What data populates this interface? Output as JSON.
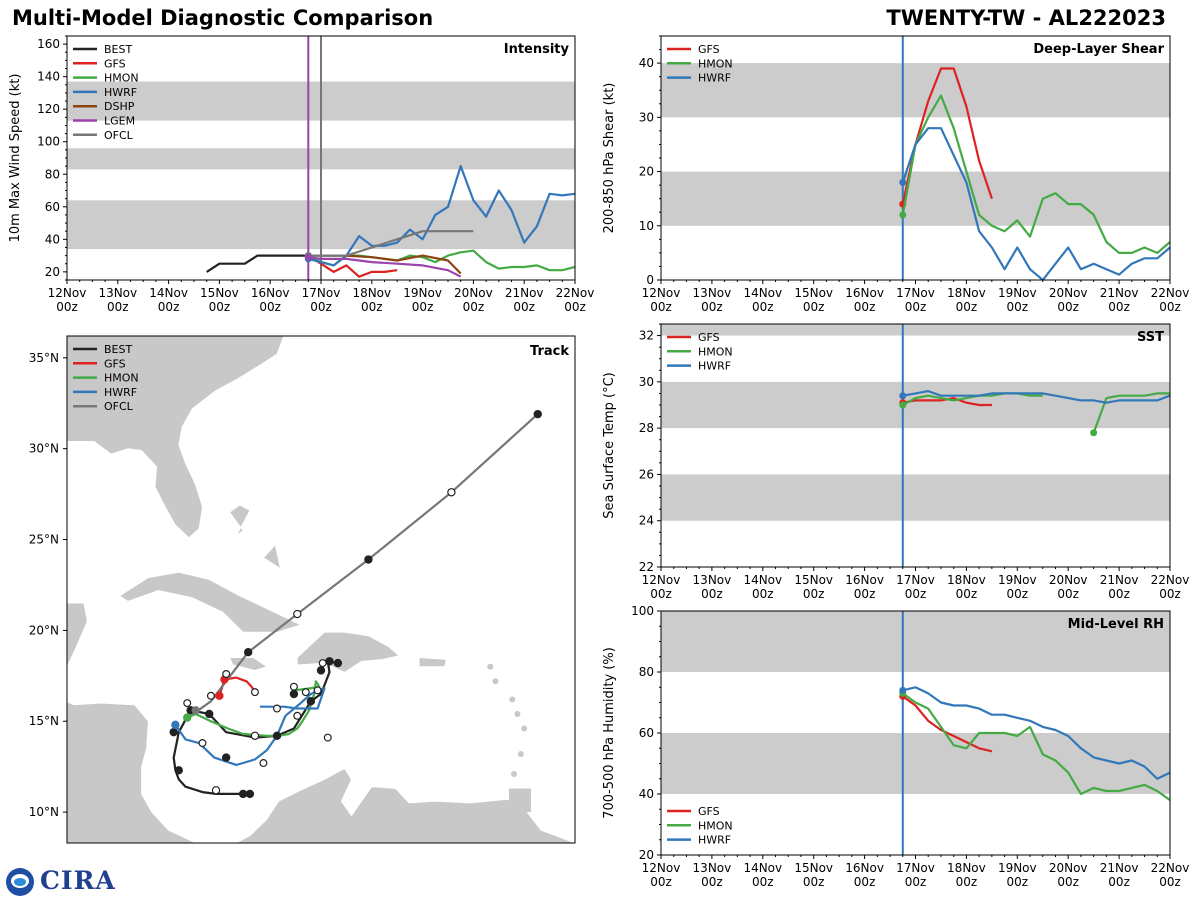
{
  "header": {
    "title_left": "Multi-Model Diagnostic Comparison",
    "title_right": "TWENTY-TW - AL222023"
  },
  "logo": {
    "text": "CIRA"
  },
  "colors": {
    "BEST": "#222222",
    "GFS": "#dd2222",
    "HMON": "#44aa44",
    "HWRF": "#3377bb",
    "DSHP": "#8b4513",
    "LGEM": "#9944aa",
    "OFCL": "#777777",
    "band": "#cccccc",
    "land": "#c8c8c8"
  },
  "time_axis": {
    "labels_top": [
      "12Nov",
      "13Nov",
      "14Nov",
      "15Nov",
      "16Nov",
      "17Nov",
      "18Nov",
      "19Nov",
      "20Nov",
      "21Nov",
      "22Nov"
    ],
    "labels_bottom": [
      "00z",
      "00z",
      "00z",
      "00z",
      "00z",
      "00z",
      "00z",
      "00z",
      "00z",
      "00z",
      "00z"
    ],
    "range": [
      0,
      10
    ]
  },
  "chart_data": [
    {
      "id": "intensity",
      "type": "line",
      "title": "Intensity",
      "ylabel": "10m Max Wind Speed (kt)",
      "ylim": [
        15,
        165
      ],
      "yticks": [
        20,
        40,
        60,
        80,
        100,
        120,
        140,
        160
      ],
      "bands": [
        [
          34,
          64
        ],
        [
          83,
          96
        ],
        [
          113,
          137
        ]
      ],
      "vlines": [
        {
          "x": 4.75,
          "color": "#9944aa"
        },
        {
          "x": 5.0,
          "color": "#777777"
        }
      ],
      "legend": [
        "BEST",
        "GFS",
        "HMON",
        "HWRF",
        "DSHP",
        "LGEM",
        "OFCL"
      ],
      "series": [
        {
          "name": "BEST",
          "x": [
            2.75,
            3.0,
            3.25,
            3.5,
            3.75,
            4.0,
            4.25,
            4.5,
            4.75
          ],
          "y": [
            20,
            25,
            25,
            25,
            30,
            30,
            30,
            30,
            30
          ]
        },
        {
          "name": "GFS",
          "x": [
            4.75,
            5.0,
            5.25,
            5.5,
            5.75,
            6.0,
            6.25,
            6.5
          ],
          "y": [
            30,
            25,
            20,
            24,
            17,
            20,
            20,
            21
          ]
        },
        {
          "name": "HMON",
          "x": [
            4.75,
            5.0,
            5.25,
            5.5,
            5.75,
            6.0,
            6.25,
            6.5,
            6.75,
            7.0,
            7.25,
            7.5,
            7.75,
            8.0,
            8.25,
            8.5,
            8.75,
            9.0,
            9.25,
            9.5,
            9.75,
            10.0
          ],
          "y": [
            30,
            26,
            24,
            30,
            30,
            29,
            28,
            27,
            30,
            29,
            26,
            30,
            32,
            33,
            26,
            22,
            23,
            23,
            24,
            21,
            21,
            23
          ]
        },
        {
          "name": "HWRF",
          "x": [
            4.75,
            5.0,
            5.25,
            5.5,
            5.75,
            6.0,
            6.25,
            6.5,
            6.75,
            7.0,
            7.25,
            7.5,
            7.75,
            8.0,
            8.25,
            8.5,
            8.75,
            9.0,
            9.25,
            9.5,
            9.75,
            10.0
          ],
          "y": [
            28,
            26,
            24,
            30,
            42,
            36,
            36,
            38,
            46,
            40,
            55,
            60,
            85,
            64,
            54,
            70,
            58,
            38,
            48,
            68,
            67,
            68
          ]
        },
        {
          "name": "DSHP",
          "x": [
            4.75,
            5.0,
            5.5,
            6.0,
            6.5,
            7.0,
            7.5,
            7.75
          ],
          "y": [
            30,
            30,
            30,
            29,
            27,
            30,
            27,
            19
          ]
        },
        {
          "name": "LGEM",
          "x": [
            4.75,
            5.0,
            5.5,
            6.0,
            6.5,
            7.0,
            7.5,
            7.75
          ],
          "y": [
            29,
            28,
            28,
            26,
            25,
            24,
            21,
            17
          ]
        },
        {
          "name": "OFCL",
          "x": [
            4.75,
            5.0,
            5.5,
            6.0,
            6.5,
            7.0,
            7.5,
            8.0
          ],
          "y": [
            30,
            30,
            30,
            35,
            40,
            45,
            45,
            45
          ]
        }
      ]
    },
    {
      "id": "shear",
      "type": "line",
      "title": "Deep-Layer Shear",
      "ylabel": "200-850 hPa Shear (kt)",
      "ylim": [
        0,
        45
      ],
      "yticks": [
        0,
        10,
        20,
        30,
        40
      ],
      "bands": [
        [
          10,
          20
        ],
        [
          30,
          40
        ]
      ],
      "vlines": [
        {
          "x": 4.75,
          "color": "#3377bb"
        }
      ],
      "legend": [
        "GFS",
        "HMON",
        "HWRF"
      ],
      "series": [
        {
          "name": "GFS",
          "x": [
            4.75,
            5.0,
            5.25,
            5.5,
            5.75,
            6.0,
            6.25,
            6.5
          ],
          "y": [
            14,
            25,
            33,
            39,
            39,
            32,
            22,
            15
          ]
        },
        {
          "name": "HMON",
          "x": [
            4.75,
            5.0,
            5.25,
            5.5,
            5.75,
            6.0,
            6.25,
            6.5,
            6.75,
            7.0,
            7.25,
            7.5,
            7.75,
            8.0,
            8.25,
            8.5,
            8.75,
            9.0,
            9.25,
            9.5,
            9.75,
            10.0
          ],
          "y": [
            12,
            25,
            30,
            34,
            28,
            20,
            12,
            10,
            9,
            11,
            8,
            15,
            16,
            14,
            14,
            12,
            7,
            5,
            5,
            6,
            5,
            7
          ]
        },
        {
          "name": "HWRF",
          "x": [
            4.75,
            5.0,
            5.25,
            5.5,
            5.75,
            6.0,
            6.25,
            6.5,
            6.75,
            7.0,
            7.25,
            7.5,
            7.75,
            8.0,
            8.25,
            8.5,
            8.75,
            9.0,
            9.25,
            9.5,
            9.75,
            10.0
          ],
          "y": [
            18,
            25,
            28,
            28,
            23,
            18,
            9,
            6,
            2,
            6,
            2,
            0,
            3,
            6,
            2,
            3,
            2,
            1,
            3,
            4,
            4,
            6
          ]
        }
      ]
    },
    {
      "id": "sst",
      "type": "line",
      "title": "SST",
      "ylabel": "Sea Surface Temp (°C)",
      "ylim": [
        22,
        32.5
      ],
      "yticks": [
        22,
        24,
        26,
        28,
        30,
        32
      ],
      "bands": [
        [
          24,
          26
        ],
        [
          28,
          30
        ],
        [
          32,
          34
        ]
      ],
      "vlines": [
        {
          "x": 4.75,
          "color": "#3377bb"
        }
      ],
      "legend": [
        "GFS",
        "HMON",
        "HWRF"
      ],
      "series": [
        {
          "name": "GFS",
          "x": [
            4.75,
            5.0,
            5.25,
            5.5,
            5.75,
            6.0,
            6.25,
            6.5
          ],
          "y": [
            29.1,
            29.2,
            29.2,
            29.2,
            29.3,
            29.1,
            29.0,
            29.0
          ]
        },
        {
          "name": "HMON",
          "x": [
            4.75,
            5.0,
            5.25,
            5.5,
            5.75,
            6.0,
            6.25,
            6.5,
            6.75,
            7.0,
            7.25,
            7.5
          ],
          "y": [
            29.0,
            29.3,
            29.4,
            29.3,
            29.2,
            29.3,
            29.4,
            29.4,
            29.5,
            29.5,
            29.4,
            29.4
          ]
        },
        {
          "name": "HMON",
          "x": [
            8.5,
            8.75,
            9.0,
            9.25,
            9.5,
            9.75,
            10.0
          ],
          "y": [
            27.8,
            29.3,
            29.4,
            29.4,
            29.4,
            29.5,
            29.5
          ]
        },
        {
          "name": "HWRF",
          "x": [
            4.75,
            5.0,
            5.25,
            5.5,
            5.75,
            6.0,
            6.25,
            6.5,
            6.75,
            7.0,
            7.25,
            7.5,
            7.75,
            8.0,
            8.25,
            8.5,
            8.75,
            9.0,
            9.25,
            9.5,
            9.75,
            10.0
          ],
          "y": [
            29.4,
            29.5,
            29.6,
            29.4,
            29.4,
            29.4,
            29.4,
            29.5,
            29.5,
            29.5,
            29.5,
            29.5,
            29.4,
            29.3,
            29.2,
            29.2,
            29.1,
            29.2,
            29.2,
            29.2,
            29.2,
            29.4
          ]
        }
      ]
    },
    {
      "id": "rh",
      "type": "line",
      "title": "Mid-Level RH",
      "ylabel": "700-500 hPa Humidity (%)",
      "ylim": [
        20,
        100
      ],
      "yticks": [
        20,
        40,
        60,
        80,
        100
      ],
      "bands": [
        [
          40,
          60
        ],
        [
          80,
          100
        ]
      ],
      "vlines": [
        {
          "x": 4.75,
          "color": "#3377bb"
        }
      ],
      "legend": [
        "GFS",
        "HMON",
        "HWRF"
      ],
      "legend_pos": "bottom-left",
      "series": [
        {
          "name": "GFS",
          "x": [
            4.75,
            5.0,
            5.25,
            5.5,
            5.75,
            6.0,
            6.25,
            6.5
          ],
          "y": [
            72,
            69,
            64,
            61,
            59,
            57,
            55,
            54
          ]
        },
        {
          "name": "HMON",
          "x": [
            4.75,
            5.0,
            5.25,
            5.5,
            5.75,
            6.0,
            6.25,
            6.5,
            6.75,
            7.0,
            7.25,
            7.5,
            7.75,
            8.0,
            8.25,
            8.5,
            8.75,
            9.0,
            9.25,
            9.5,
            9.75,
            10.0
          ],
          "y": [
            73,
            70,
            68,
            62,
            56,
            55,
            60,
            60,
            60,
            59,
            62,
            53,
            51,
            47,
            40,
            42,
            41,
            41,
            42,
            43,
            41,
            38
          ]
        },
        {
          "name": "HWRF",
          "x": [
            4.75,
            5.0,
            5.25,
            5.5,
            5.75,
            6.0,
            6.25,
            6.5,
            6.75,
            7.0,
            7.25,
            7.5,
            7.75,
            8.0,
            8.25,
            8.5,
            8.75,
            9.0,
            9.25,
            9.5,
            9.75,
            10.0
          ],
          "y": [
            74,
            75,
            73,
            70,
            69,
            69,
            68,
            66,
            66,
            65,
            64,
            62,
            61,
            59,
            55,
            52,
            51,
            50,
            51,
            49,
            45,
            47
          ]
        }
      ]
    },
    {
      "id": "track",
      "type": "scatter",
      "title": "Track",
      "lon_range": [
        -88,
        -58
      ],
      "lat_range": [
        8.3,
        36.2
      ],
      "yticks": [
        10,
        15,
        20,
        25,
        30,
        35
      ],
      "ytick_labels": [
        "10°N",
        "15°N",
        "20°N",
        "25°N",
        "30°N",
        "35°N"
      ],
      "legend": [
        "BEST",
        "GFS",
        "HMON",
        "HWRF",
        "OFCL"
      ],
      "series": [
        {
          "name": "BEST",
          "lon": [
            -77.2,
            -77.6,
            -78.6,
            -79.2,
            -80.0,
            -81.0,
            -81.4,
            -81.6,
            -81.7,
            -81.4,
            -80.7,
            -79.6,
            -78.6,
            -76.9,
            -75.6,
            -74.6,
            -73.6,
            -73.0,
            -72.5,
            -72.6,
            -72.0
          ],
          "lat": [
            11.0,
            11.0,
            11.0,
            11.0,
            11.1,
            11.4,
            11.8,
            12.3,
            13.0,
            14.4,
            15.6,
            15.4,
            14.4,
            14.1,
            14.2,
            14.6,
            16.1,
            16.5,
            17.7,
            18.3,
            18.2
          ]
        },
        {
          "name": "GFS",
          "lon": [
            -79.0,
            -78.7,
            -78.0,
            -77.4,
            -77.1,
            -76.9
          ],
          "lat": [
            16.4,
            17.3,
            17.4,
            17.2,
            16.9,
            16.6
          ]
        },
        {
          "name": "HMON",
          "lon": [
            -80.9,
            -80.4,
            -79.5,
            -78.5,
            -77.6,
            -76.2,
            -75.5,
            -74.9,
            -74.4,
            -74.1,
            -73.7,
            -73.4,
            -73.3,
            -73.1,
            -73.7,
            -74.6
          ],
          "lat": [
            15.2,
            15.4,
            15.0,
            14.6,
            14.3,
            14.2,
            14.2,
            14.3,
            14.6,
            15.0,
            15.6,
            16.5,
            17.2,
            16.9,
            16.8,
            16.7
          ]
        },
        {
          "name": "HWRF",
          "lon": [
            -81.6,
            -81.0,
            -80.2,
            -79.3,
            -78.0,
            -77.6,
            -76.9,
            -76.2,
            -75.6,
            -75.1,
            -74.2,
            -73.6,
            -72.9,
            -72.8,
            -73.2,
            -74.4,
            -75.2,
            -76.6
          ],
          "lat": [
            14.8,
            14.0,
            13.8,
            13.0,
            12.6,
            12.7,
            12.9,
            13.4,
            14.2,
            15.3,
            16.0,
            16.5,
            16.8,
            16.8,
            15.7,
            15.7,
            15.8,
            15.8
          ]
        },
        {
          "name": "OFCL",
          "lon": [
            -80.4,
            -79.5,
            -77.3,
            -74.4,
            -70.2,
            -65.3,
            -60.2
          ],
          "lat": [
            15.5,
            16.1,
            18.8,
            20.9,
            23.9,
            27.6,
            31.9
          ]
        }
      ],
      "markers": [
        {
          "name": "BEST",
          "lon": [
            -77.2,
            -77.6,
            -79.2,
            -81.4,
            -81.7,
            -80.7,
            -79.6,
            -78.6,
            -76.9,
            -75.6,
            -74.6,
            -73.6,
            -73.0,
            -72.5,
            -72.0
          ],
          "lat": [
            11.0,
            11.0,
            11.2,
            12.3,
            14.4,
            15.6,
            15.4,
            13.0,
            14.2,
            14.2,
            16.5,
            16.1,
            17.8,
            18.3,
            18.2
          ],
          "open": [
            false,
            false,
            true,
            false,
            false,
            false,
            false,
            false,
            true,
            false,
            false,
            false,
            false,
            false,
            false
          ]
        },
        {
          "name": "GFS",
          "lon": [
            -79.0,
            -78.7
          ],
          "lat": [
            16.4,
            17.3
          ],
          "open": [
            false,
            false
          ]
        },
        {
          "name": "HMON",
          "lon": [
            -80.9
          ],
          "lat": [
            15.2
          ],
          "open": [
            false
          ]
        },
        {
          "name": "HWRF",
          "lon": [
            -81.6
          ],
          "lat": [
            14.8
          ],
          "open": [
            false
          ]
        },
        {
          "name": "OFCL",
          "lon": [
            -80.4
          ],
          "lat": [
            15.6
          ],
          "open": [
            false
          ]
        }
      ],
      "open_circles": {
        "lon": [
          -80.9,
          -80.0,
          -78.6,
          -76.9,
          -76.4,
          -74.6,
          -73.9,
          -73.2,
          -72.9,
          -72.6,
          -74.4,
          -79.5,
          -75.6
        ],
        "lat": [
          16.0,
          13.8,
          17.6,
          16.6,
          12.7,
          16.9,
          16.6,
          16.7,
          18.2,
          14.1,
          15.3,
          16.4,
          15.7
        ]
      },
      "ofcl_points": {
        "lon": [
          -77.3,
          -74.4,
          -70.2,
          -65.3,
          -60.2
        ],
        "lat": [
          18.8,
          20.9,
          23.9,
          27.6,
          31.9
        ],
        "open": [
          false,
          true,
          false,
          true,
          false
        ]
      }
    }
  ]
}
